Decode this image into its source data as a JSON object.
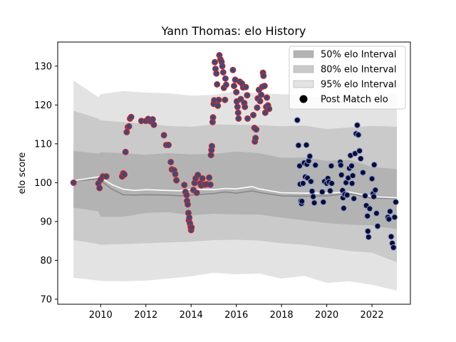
{
  "chart_data": {
    "type": "scatter",
    "title": "Yann Thomas: elo History",
    "xlabel": "",
    "ylabel": "elo score",
    "xlim": [
      2008.1,
      2023.7
    ],
    "ylim": [
      68.7,
      136.2
    ],
    "x_ticks": [
      2010,
      2012,
      2014,
      2016,
      2018,
      2020,
      2022
    ],
    "y_ticks": [
      70,
      80,
      90,
      100,
      110,
      120,
      130
    ],
    "grid": false,
    "legend_placement": "top-right",
    "legend": [
      {
        "label": "50% elo Interval",
        "kind": "band",
        "color": "#b3b3b3"
      },
      {
        "label": "80% elo Interval",
        "kind": "band",
        "color": "#cacaca"
      },
      {
        "label": "95% elo Interval",
        "kind": "band",
        "color": "#e3e3e3"
      },
      {
        "label": "Post Match elo",
        "kind": "marker",
        "color": "#000000"
      }
    ],
    "colors": {
      "band50": "#b3b3b3",
      "band80": "#cacaca",
      "band95": "#e3e3e3",
      "median_line": "#888888",
      "mean_line": "#ffffff",
      "early_points_fill": "#3d4a78",
      "early_points_edge": "#d62728",
      "late_points_fill": "#0b0b3b",
      "late_points_edge": "#8fa4c9"
    },
    "bands": {
      "x": [
        2008.8,
        2009.9,
        2010.0,
        2011.0,
        2012.0,
        2013.0,
        2014.0,
        2015.0,
        2016.0,
        2017.0,
        2018.0,
        2019.0,
        2020.0,
        2021.0,
        2022.0,
        2023.1
      ],
      "p95_upper": [
        126.3,
        122.0,
        122.8,
        123.6,
        123.2,
        123.0,
        122.4,
        122.6,
        123.6,
        123.0,
        122.8,
        122.4,
        121.8,
        121.8,
        122.4,
        123.0
      ],
      "p95_lower": [
        75.5,
        74.8,
        74.7,
        74.6,
        74.8,
        75.3,
        75.9,
        76.8,
        76.4,
        76.6,
        75.3,
        76.0,
        74.2,
        74.6,
        73.7,
        72.2
      ],
      "p80_upper": [
        118.5,
        116.5,
        116.0,
        115.6,
        115.2,
        114.6,
        114.4,
        115.0,
        114.9,
        114.8,
        114.5,
        114.7,
        113.8,
        114.2,
        114.6,
        114.4
      ],
      "p80_lower": [
        85.2,
        84.2,
        84.0,
        84.2,
        84.4,
        84.6,
        84.8,
        85.2,
        85.3,
        85.1,
        84.4,
        84.0,
        83.2,
        82.4,
        82.0,
        79.5
      ],
      "p50_upper": [
        108.2,
        107.5,
        107.8,
        107.6,
        107.2,
        107.6,
        107.3,
        107.4,
        108.0,
        107.6,
        106.4,
        106.5,
        105.6,
        105.9,
        104.0,
        103.5
      ],
      "p50_lower": [
        93.6,
        92.6,
        91.2,
        91.2,
        92.2,
        92.4,
        91.6,
        92.0,
        91.8,
        91.8,
        91.0,
        90.3,
        89.6,
        89.2,
        89.0,
        88.0
      ]
    },
    "median_line": {
      "x": [
        2008.8,
        2009.9,
        2010.0,
        2010.5,
        2011.0,
        2011.5,
        2012.0,
        2013.0,
        2013.5,
        2014.0,
        2015.0,
        2015.5,
        2016.0,
        2016.7,
        2017.0,
        2018.0,
        2019.0,
        2020.0,
        2021.0,
        2022.0,
        2023.1
      ],
      "y": [
        100.4,
        101.0,
        100.5,
        98.3,
        96.9,
        96.8,
        96.9,
        96.8,
        96.6,
        96.8,
        97.2,
        97.6,
        97.3,
        97.9,
        97.5,
        96.6,
        96.5,
        96.6,
        97.2,
        96.0,
        95.9
      ]
    },
    "mean_line": {
      "x": [
        2008.8,
        2009.9,
        2010.0,
        2010.5,
        2011.0,
        2011.5,
        2012.0,
        2013.0,
        2013.5,
        2014.0,
        2015.0,
        2015.5,
        2016.0,
        2016.7,
        2017.0,
        2018.0,
        2019.0,
        2020.0,
        2021.0,
        2022.0,
        2023.1
      ],
      "y": [
        100.5,
        101.5,
        101.3,
        99.5,
        98.3,
        98.0,
        98.2,
        98.0,
        97.9,
        98.3,
        98.2,
        98.5,
        98.4,
        99.0,
        98.4,
        97.4,
        97.3,
        97.3,
        97.6,
        96.4,
        96.1
      ]
    },
    "series": [
      {
        "name": "Post Match elo",
        "group": "early",
        "points": [
          [
            2008.8,
            100.0
          ],
          [
            2009.9,
            99.8
          ],
          [
            2009.95,
            98.6
          ],
          [
            2010.0,
            100.8
          ],
          [
            2010.1,
            101.6
          ],
          [
            2010.25,
            101.6
          ],
          [
            2010.95,
            101.6
          ],
          [
            2011.0,
            102.4
          ],
          [
            2011.05,
            102.1
          ],
          [
            2011.1,
            107.9
          ],
          [
            2011.15,
            113.0
          ],
          [
            2011.2,
            114.3
          ],
          [
            2011.25,
            114.5
          ],
          [
            2011.3,
            116.5
          ],
          [
            2011.35,
            116.9
          ],
          [
            2011.8,
            115.9
          ],
          [
            2012.0,
            115.9
          ],
          [
            2012.1,
            116.4
          ],
          [
            2012.2,
            115.8
          ],
          [
            2012.3,
            116.3
          ],
          [
            2012.35,
            114.9
          ],
          [
            2012.8,
            112.2
          ],
          [
            2012.9,
            109.7
          ],
          [
            2013.0,
            109.7
          ],
          [
            2013.1,
            105.3
          ],
          [
            2013.15,
            103.4
          ],
          [
            2013.25,
            103.2
          ],
          [
            2013.3,
            102.2
          ],
          [
            2013.35,
            100.6
          ],
          [
            2013.7,
            99.4
          ],
          [
            2013.75,
            97.6
          ],
          [
            2013.8,
            96.8
          ],
          [
            2013.82,
            95.3
          ],
          [
            2013.85,
            94.4
          ],
          [
            2013.88,
            92.2
          ],
          [
            2013.9,
            90.3
          ],
          [
            2013.92,
            91.0
          ],
          [
            2013.95,
            89.5
          ],
          [
            2013.98,
            88.6
          ],
          [
            2014.0,
            87.8
          ],
          [
            2014.02,
            88.5
          ],
          [
            2014.1,
            98.1
          ],
          [
            2014.15,
            99.9
          ],
          [
            2014.2,
            101.1
          ],
          [
            2014.25,
            97.4
          ],
          [
            2014.3,
            102.0
          ],
          [
            2014.4,
            99.8
          ],
          [
            2014.45,
            99.3
          ],
          [
            2014.5,
            101.1
          ],
          [
            2014.6,
            99.5
          ],
          [
            2014.7,
            99.6
          ],
          [
            2014.8,
            101.3
          ],
          [
            2014.85,
            99.5
          ],
          [
            2014.88,
            107.1
          ],
          [
            2014.9,
            108.4
          ],
          [
            2014.92,
            109.4
          ],
          [
            2014.95,
            115.6
          ],
          [
            2014.97,
            116.8
          ],
          [
            2015.0,
            120.3
          ],
          [
            2015.02,
            121.2
          ],
          [
            2015.05,
            131.0
          ],
          [
            2015.08,
            129.3
          ],
          [
            2015.12,
            128.1
          ],
          [
            2015.15,
            125.3
          ],
          [
            2015.18,
            119.8
          ],
          [
            2015.22,
            121.3
          ],
          [
            2015.25,
            132.8
          ],
          [
            2015.3,
            131.7
          ],
          [
            2015.35,
            131.1
          ],
          [
            2015.38,
            130.0
          ],
          [
            2015.42,
            128.4
          ],
          [
            2015.45,
            124.4
          ],
          [
            2015.5,
            121.3
          ],
          [
            2015.52,
            126.8
          ],
          [
            2015.55,
            125.2
          ],
          [
            2015.85,
            129.0
          ],
          [
            2015.9,
            124.9
          ],
          [
            2015.95,
            126.5
          ],
          [
            2016.0,
            123.3
          ],
          [
            2016.02,
            120.9
          ],
          [
            2016.05,
            119.5
          ],
          [
            2016.08,
            118.0
          ],
          [
            2016.1,
            116.5
          ],
          [
            2016.15,
            126.0
          ],
          [
            2016.2,
            121.5
          ],
          [
            2016.25,
            125.5
          ],
          [
            2016.3,
            124.5
          ],
          [
            2016.35,
            120.5
          ],
          [
            2016.38,
            119.5
          ],
          [
            2016.42,
            124.6
          ],
          [
            2016.48,
            122.5
          ],
          [
            2016.5,
            116.5
          ],
          [
            2016.75,
            117.4
          ],
          [
            2016.8,
            114.1
          ],
          [
            2016.82,
            110.6
          ],
          [
            2016.85,
            111.5
          ],
          [
            2016.88,
            113.7
          ],
          [
            2016.92,
            119.3
          ],
          [
            2016.95,
            121.7
          ],
          [
            2017.0,
            123.9
          ],
          [
            2017.05,
            121.0
          ],
          [
            2017.1,
            122.6
          ],
          [
            2017.15,
            124.7
          ],
          [
            2017.18,
            128.3
          ],
          [
            2017.2,
            127.5
          ],
          [
            2017.25,
            124.9
          ],
          [
            2017.28,
            118.0
          ],
          [
            2017.32,
            119.5
          ],
          [
            2017.35,
            121.9
          ],
          [
            2017.4,
            119.9
          ],
          [
            2017.45,
            119.0
          ]
        ]
      },
      {
        "name": "Post Match elo",
        "group": "late",
        "points": [
          [
            2018.7,
            116.1
          ],
          [
            2018.75,
            109.6
          ],
          [
            2018.8,
            104.3
          ],
          [
            2018.82,
            99.6
          ],
          [
            2018.85,
            95.3
          ],
          [
            2018.88,
            94.6
          ],
          [
            2018.9,
            95.2
          ],
          [
            2018.95,
            99.8
          ],
          [
            2019.0,
            105.1
          ],
          [
            2019.05,
            101.5
          ],
          [
            2019.1,
            109.7
          ],
          [
            2019.12,
            104.7
          ],
          [
            2019.15,
            101.2
          ],
          [
            2019.2,
            105.6
          ],
          [
            2019.25,
            106.8
          ],
          [
            2019.3,
            100.3
          ],
          [
            2019.35,
            97.8
          ],
          [
            2019.4,
            96.4
          ],
          [
            2019.45,
            94.8
          ],
          [
            2019.5,
            104.5
          ],
          [
            2019.8,
            97.6
          ],
          [
            2019.85,
            95.0
          ],
          [
            2019.9,
            100.3
          ],
          [
            2020.0,
            99.8
          ],
          [
            2020.05,
            101.1
          ],
          [
            2020.1,
            100.2
          ],
          [
            2020.15,
            97.9
          ],
          [
            2020.2,
            104.3
          ],
          [
            2020.22,
            99.8
          ],
          [
            2020.6,
            105.3
          ],
          [
            2020.62,
            104.5
          ],
          [
            2020.65,
            102.0
          ],
          [
            2020.7,
            98.0
          ],
          [
            2020.72,
            96.1
          ],
          [
            2020.75,
            93.4
          ],
          [
            2020.8,
            97.0
          ],
          [
            2020.85,
            100.0
          ],
          [
            2020.9,
            96.8
          ],
          [
            2020.95,
            101.2
          ],
          [
            2021.0,
            103.7
          ],
          [
            2021.05,
            107.0
          ],
          [
            2021.1,
            104.3
          ],
          [
            2021.12,
            99.8
          ],
          [
            2021.15,
            101.8
          ],
          [
            2021.2,
            95.9
          ],
          [
            2021.25,
            107.5
          ],
          [
            2021.3,
            112.6
          ],
          [
            2021.35,
            114.8
          ],
          [
            2021.4,
            112.3
          ],
          [
            2021.45,
            108.2
          ],
          [
            2021.5,
            106.2
          ],
          [
            2021.6,
            102.6
          ],
          [
            2021.7,
            96.6
          ],
          [
            2021.75,
            94.1
          ],
          [
            2021.8,
            91.4
          ],
          [
            2021.82,
            87.5
          ],
          [
            2021.85,
            86.0
          ],
          [
            2021.9,
            93.3
          ],
          [
            2022.0,
            101.0
          ],
          [
            2022.05,
            97.2
          ],
          [
            2022.08,
            96.4
          ],
          [
            2022.1,
            104.6
          ],
          [
            2022.15,
            98.1
          ],
          [
            2022.2,
            92.1
          ],
          [
            2022.25,
            88.8
          ],
          [
            2022.7,
            91.1
          ],
          [
            2022.75,
            90.6
          ],
          [
            2022.8,
            92.6
          ],
          [
            2022.85,
            86.1
          ],
          [
            2022.9,
            84.4
          ],
          [
            2022.95,
            83.3
          ],
          [
            2023.0,
            91.1
          ],
          [
            2023.05,
            95.0
          ]
        ]
      }
    ]
  }
}
